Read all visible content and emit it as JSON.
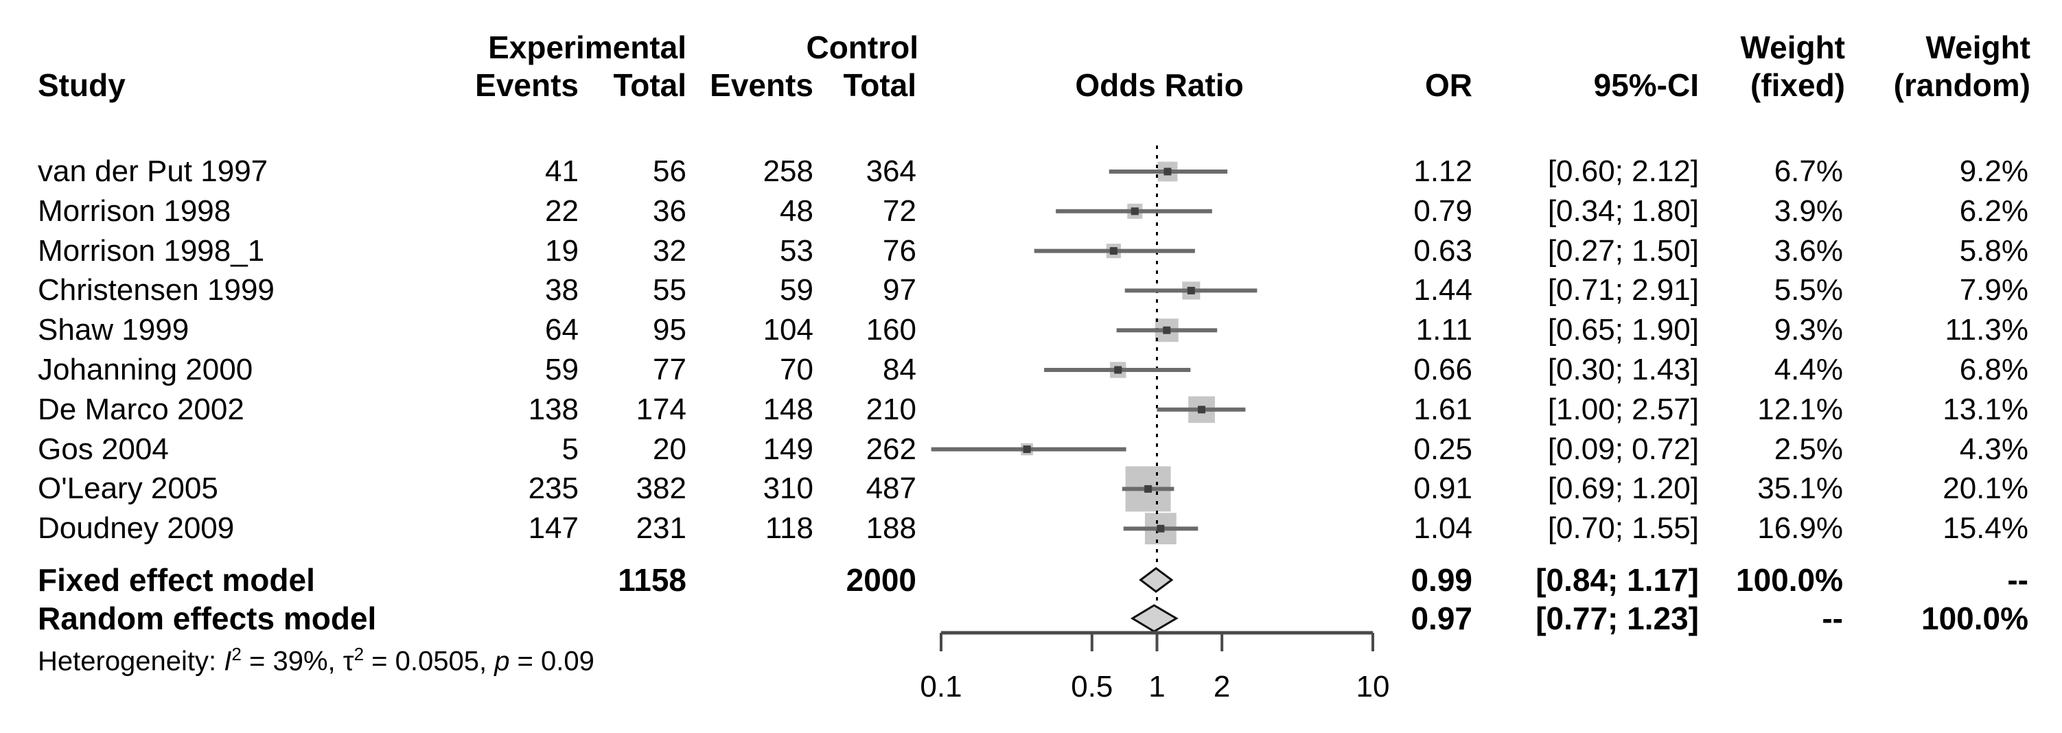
{
  "columns": {
    "study": "Study",
    "group_experimental": "Experimental",
    "group_control": "Control",
    "events": "Events",
    "total": "Total",
    "plot_title": "Odds Ratio",
    "or": "OR",
    "ci": "95%-CI",
    "weight": "Weight",
    "weight_fixed_sub": "(fixed)",
    "weight_random_sub": "(random)"
  },
  "chart_data": {
    "type": "forest",
    "x_scale": "log10",
    "xlim": [
      0.1,
      10
    ],
    "ref_line": 1,
    "axis_tick_values": [
      0.1,
      0.5,
      1,
      2,
      10
    ],
    "axis_tick_labels": [
      "0.1",
      "0.5",
      "1",
      "2",
      "10"
    ],
    "studies": [
      {
        "study": "van der Put 1997",
        "exp_events": "41",
        "exp_total": "56",
        "ctrl_events": "258",
        "ctrl_total": "364",
        "or": 1.12,
        "ci_low": 0.6,
        "ci_high": 2.12,
        "or_label": "1.12",
        "ci_label": "[0.60; 2.12]",
        "weight_fixed": "6.7%",
        "weight_random": "9.2%",
        "wf": 6.7,
        "wr": 9.2
      },
      {
        "study": "Morrison 1998",
        "exp_events": "22",
        "exp_total": "36",
        "ctrl_events": "48",
        "ctrl_total": "72",
        "or": 0.79,
        "ci_low": 0.34,
        "ci_high": 1.8,
        "or_label": "0.79",
        "ci_label": "[0.34; 1.80]",
        "weight_fixed": "3.9%",
        "weight_random": "6.2%",
        "wf": 3.9,
        "wr": 6.2
      },
      {
        "study": "Morrison 1998_1",
        "exp_events": "19",
        "exp_total": "32",
        "ctrl_events": "53",
        "ctrl_total": "76",
        "or": 0.63,
        "ci_low": 0.27,
        "ci_high": 1.5,
        "or_label": "0.63",
        "ci_label": "[0.27; 1.50]",
        "weight_fixed": "3.6%",
        "weight_random": "5.8%",
        "wf": 3.6,
        "wr": 5.8
      },
      {
        "study": "Christensen 1999",
        "exp_events": "38",
        "exp_total": "55",
        "ctrl_events": "59",
        "ctrl_total": "97",
        "or": 1.44,
        "ci_low": 0.71,
        "ci_high": 2.91,
        "or_label": "1.44",
        "ci_label": "[0.71; 2.91]",
        "weight_fixed": "5.5%",
        "weight_random": "7.9%",
        "wf": 5.5,
        "wr": 7.9
      },
      {
        "study": "Shaw 1999",
        "exp_events": "64",
        "exp_total": "95",
        "ctrl_events": "104",
        "ctrl_total": "160",
        "or": 1.11,
        "ci_low": 0.65,
        "ci_high": 1.9,
        "or_label": "1.11",
        "ci_label": "[0.65; 1.90]",
        "weight_fixed": "9.3%",
        "weight_random": "11.3%",
        "wf": 9.3,
        "wr": 11.3
      },
      {
        "study": "Johanning 2000",
        "exp_events": "59",
        "exp_total": "77",
        "ctrl_events": "70",
        "ctrl_total": "84",
        "or": 0.66,
        "ci_low": 0.3,
        "ci_high": 1.43,
        "or_label": "0.66",
        "ci_label": "[0.30; 1.43]",
        "weight_fixed": "4.4%",
        "weight_random": "6.8%",
        "wf": 4.4,
        "wr": 6.8
      },
      {
        "study": "De Marco 2002",
        "exp_events": "138",
        "exp_total": "174",
        "ctrl_events": "148",
        "ctrl_total": "210",
        "or": 1.61,
        "ci_low": 1.0,
        "ci_high": 2.57,
        "or_label": "1.61",
        "ci_label": "[1.00; 2.57]",
        "weight_fixed": "12.1%",
        "weight_random": "13.1%",
        "wf": 12.1,
        "wr": 13.1
      },
      {
        "study": "Gos 2004",
        "exp_events": "5",
        "exp_total": "20",
        "ctrl_events": "149",
        "ctrl_total": "262",
        "or": 0.25,
        "ci_low": 0.09,
        "ci_high": 0.72,
        "or_label": "0.25",
        "ci_label": "[0.09; 0.72]",
        "weight_fixed": "2.5%",
        "weight_random": "4.3%",
        "wf": 2.5,
        "wr": 4.3
      },
      {
        "study": "O'Leary 2005",
        "exp_events": "235",
        "exp_total": "382",
        "ctrl_events": "310",
        "ctrl_total": "487",
        "or": 0.91,
        "ci_low": 0.69,
        "ci_high": 1.2,
        "or_label": "0.91",
        "ci_label": "[0.69; 1.20]",
        "weight_fixed": "35.1%",
        "weight_random": "20.1%",
        "wf": 35.1,
        "wr": 20.1
      },
      {
        "study": "Doudney 2009",
        "exp_events": "147",
        "exp_total": "231",
        "ctrl_events": "118",
        "ctrl_total": "188",
        "or": 1.04,
        "ci_low": 0.7,
        "ci_high": 1.55,
        "or_label": "1.04",
        "ci_label": "[0.70; 1.55]",
        "weight_fixed": "16.9%",
        "weight_random": "15.4%",
        "wf": 16.9,
        "wr": 15.4
      }
    ],
    "summary": [
      {
        "label": "Fixed effect model",
        "exp_total": "1158",
        "ctrl_total": "2000",
        "or": 0.99,
        "ci_low": 0.84,
        "ci_high": 1.17,
        "or_label": "0.99",
        "ci_label": "[0.84; 1.17]",
        "weight_fixed": "100.0%",
        "weight_random": "--"
      },
      {
        "label": "Random effects model",
        "exp_total": "",
        "ctrl_total": "",
        "or": 0.97,
        "ci_low": 0.77,
        "ci_high": 1.23,
        "or_label": "0.97",
        "ci_label": "[0.77; 1.23]",
        "weight_fixed": "--",
        "weight_random": "100.0%"
      }
    ],
    "heterogeneity": {
      "prefix": "Heterogeneity: ",
      "i_sym": "I",
      "sup": "2",
      "seg1": " = 39%, ",
      "tau_sym": "τ",
      "seg2": " = 0.0505, ",
      "p_sym": "p",
      "seg3": " = 0.09",
      "i2_value": "39%",
      "tau2_value": "0.0505",
      "p_value": "0.09"
    },
    "colors": {
      "square": "#c6c6c6",
      "square_center": "#3f3f3f",
      "ci_line": "#6b6b6b",
      "diamond_fill": "#d2d2d2",
      "diamond_stroke": "#111111",
      "axis": "#4a4a4a",
      "ref_line": "#000000",
      "text": "#000000"
    }
  }
}
